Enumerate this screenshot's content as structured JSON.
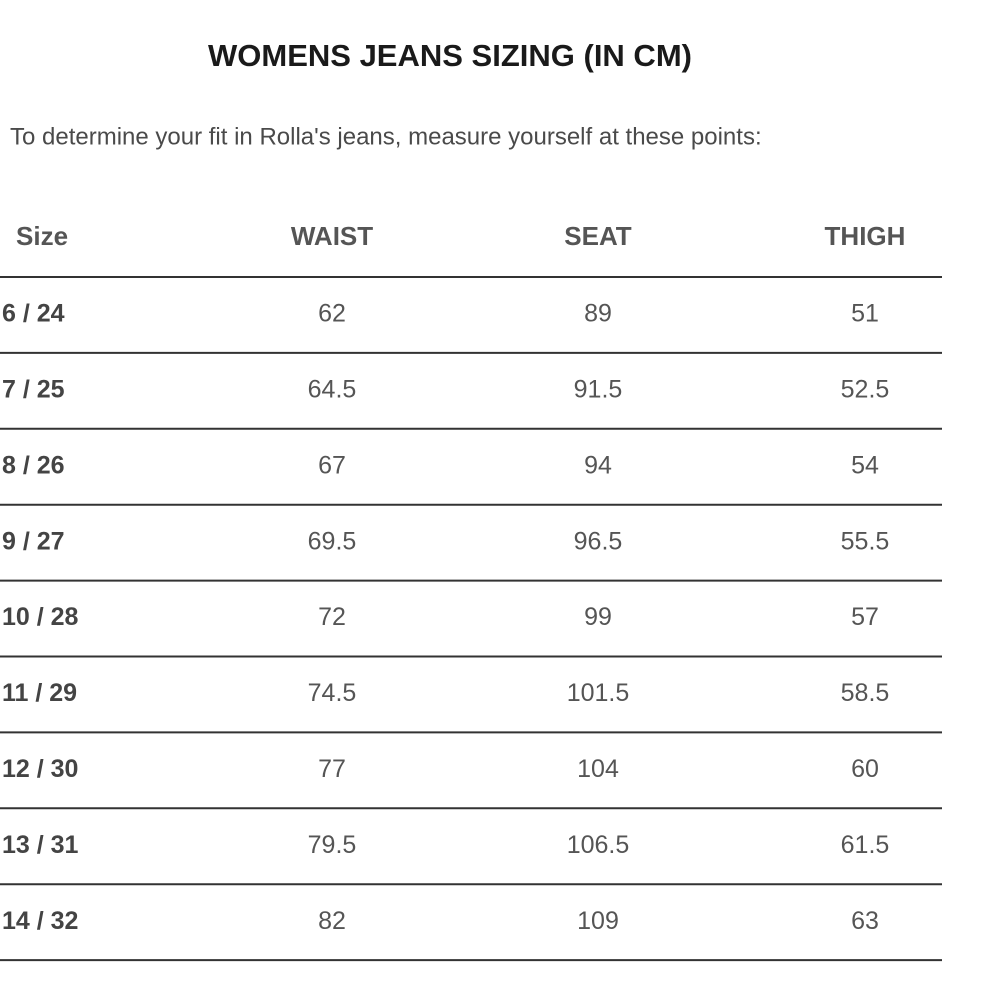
{
  "header": {
    "title": "WOMENS JEANS SIZING (IN CM)",
    "intro": "To determine your fit in Rolla's jeans, measure yourself at these points:"
  },
  "table": {
    "columns": [
      "Size",
      "WAIST",
      "SEAT",
      "THIGH"
    ],
    "rows": [
      [
        "6 / 24",
        "62",
        "89",
        "51"
      ],
      [
        "7 / 25",
        "64.5",
        "91.5",
        "52.5"
      ],
      [
        "8 / 26",
        "67",
        "94",
        "54"
      ],
      [
        "9 / 27",
        "69.5",
        "96.5",
        "55.5"
      ],
      [
        "10 / 28",
        "72",
        "99",
        "57"
      ],
      [
        "11 / 29",
        "74.5",
        "101.5",
        "58.5"
      ],
      [
        "12 / 30",
        "77",
        "104",
        "60"
      ],
      [
        "13 / 31",
        "79.5",
        "106.5",
        "61.5"
      ],
      [
        "14 / 32",
        "82",
        "109",
        "63"
      ]
    ]
  }
}
